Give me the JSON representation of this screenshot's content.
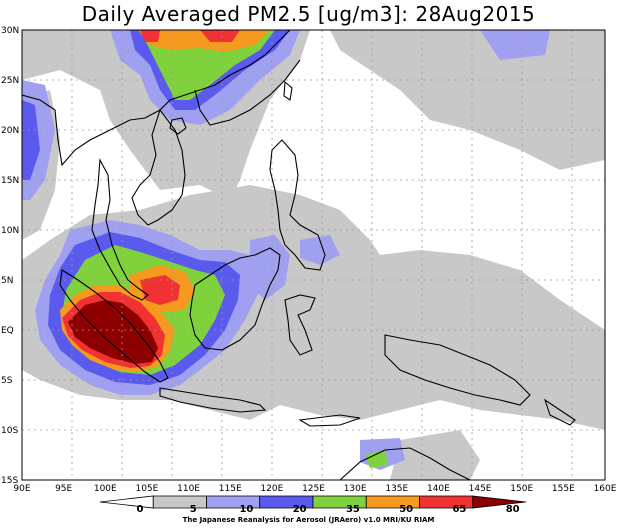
{
  "title": "Daily Averaged PM2.5 [ug/m3]: 28Aug2015",
  "lat_labels": [
    "30N",
    "25N",
    "20N",
    "15N",
    "10N",
    "5N",
    "EQ",
    "5S",
    "10S",
    "15S"
  ],
  "lon_labels": [
    "90E",
    "95E",
    "100E",
    "105E",
    "110E",
    "115E",
    "120E",
    "125E",
    "130E",
    "135E",
    "140E",
    "145E",
    "150E",
    "155E",
    "160E"
  ],
  "colorbar": {
    "levels": [
      "0",
      "5",
      "10",
      "20",
      "35",
      "50",
      "65",
      "80"
    ],
    "colors": [
      "#ffffff",
      "#c8c8c8",
      "#a0a0f0",
      "#5a5aee",
      "#7fd23c",
      "#f59a1e",
      "#f03232",
      "#8c0000"
    ]
  },
  "credit": "The Japanese Reanalysis for Aerosol (JRAero) v1.0 MRI/KU RIAM"
}
